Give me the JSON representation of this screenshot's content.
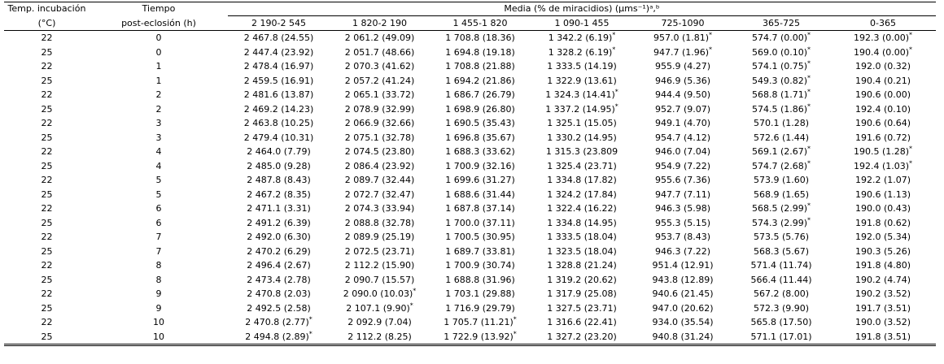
{
  "table": {
    "header": {
      "temp": [
        "Temp. incubación",
        "(°C)"
      ],
      "time": [
        "Tiempo",
        "post-eclosión (h)"
      ],
      "group": "Media (% de miracidios) (μms⁻¹)ᵃ,ᵇ",
      "columns": [
        "2 190-2 545",
        "1 820-2 190",
        "1 455-1 820",
        "1 090-1 455",
        "725-1090",
        "365-725",
        "0-365"
      ]
    },
    "rows": [
      [
        "22",
        "0",
        "2 467.8 (24.55)",
        "2 061.2 (49.09)",
        "1 708.8 (18.36)",
        "1 342.2 (6.19)*",
        "957.0 (1.81)*",
        "574.7 (0.00)*",
        "192.3 (0.00)*"
      ],
      [
        "25",
        "0",
        "2 447.4 (23.92)",
        "2 051.7 (48.66)",
        "1 694.8 (19.18)",
        "1 328.2 (6.19)*",
        "947.7 (1.96)*",
        "569.0 (0.10)*",
        "190.4 (0.00)*"
      ],
      [
        "22",
        "1",
        "2 478.4 (16.97)",
        "2 070.3 (41.62)",
        "1 708.8 (21.88)",
        "1 333.5 (14.19)",
        "955.9 (4.27)",
        "574.1 (0.75)*",
        "192.0 (0.32)"
      ],
      [
        "25",
        "1",
        "2 459.5 (16.91)",
        "2 057.2 (41.24)",
        "1 694.2 (21.86)",
        "1 322.9 (13.61)",
        "946.9 (5.36)",
        "549.3 (0.82)*",
        "190.4 (0.21)"
      ],
      [
        "22",
        "2",
        "2 481.6 (13.87)",
        "2 065.1 (33.72)",
        "1 686.7 (26.79)",
        "1 324.3 (14.41)*",
        "944.4 (9.50)",
        "568.8 (1.71)*",
        "190.6 (0.00)"
      ],
      [
        "25",
        "2",
        "2 469.2 (14.23)",
        "2 078.9 (32.99)",
        "1 698.9 (26.80)",
        "1 337.2 (14.95)*",
        "952.7 (9.07)",
        "574.5 (1.86)*",
        "192.4 (0.10)"
      ],
      [
        "22",
        "3",
        "2 463.8 (10.25)",
        "2 066.9 (32.66)",
        "1 690.5 (35.43)",
        "1 325.1 (15.05)",
        "949.1 (4.70)",
        "570.1 (1.28)",
        "190.6 (0.64)"
      ],
      [
        "25",
        "3",
        "2 479.4 (10.31)",
        "2 075.1 (32.78)",
        "1 696.8 (35.67)",
        "1 330.2 (14.95)",
        "954.7 (4.12)",
        "572.6 (1.44)",
        "191.6 (0.72)"
      ],
      [
        "22",
        "4",
        "2 464.0 (7.79)",
        "2 074.5 (23.80)",
        "1 688.3 (33.62)",
        "1 315.3 (23.809",
        "946.0 (7.04)",
        "569.1 (2.67)*",
        "190.5 (1.28)*"
      ],
      [
        "25",
        "4",
        "2 485.0 (9.28)",
        "2 086.4 (23.92)",
        "1 700.9 (32.16)",
        "1 325.4 (23.71)",
        "954.9 (7.22)",
        "574.7 (2.68)*",
        "192.4 (1.03)*"
      ],
      [
        "22",
        "5",
        "2 487.8 (8.43)",
        "2 089.7 (32.44)",
        "1 699.6 (31.27)",
        "1 334.8 (17.82)",
        "955.6 (7.36)",
        "573.9 (1.60)",
        "192.2 (1.07)"
      ],
      [
        "25",
        "5",
        "2 467.2 (8.35)",
        "2 072.7 (32.47)",
        "1 688.6 (31.44)",
        "1 324.2 (17.84)",
        "947.7 (7.11)",
        "568.9 (1.65)",
        "190.6 (1.13)"
      ],
      [
        "22",
        "6",
        "2 471.1 (3.31)",
        "2 074.3 (33.94)",
        "1 687.8 (37.14)",
        "1 322.4 (16.22)",
        "946.3 (5.98)",
        "568.5 (2.99)*",
        "190.0 (0.43)"
      ],
      [
        "25",
        "6",
        "2 491.2 (6.39)",
        "2 088.8 (32.78)",
        "1 700.0 (37.11)",
        "1 334.8 (14.95)",
        "955.3 (5.15)",
        "574.3 (2.99)*",
        "191.8 (0.62)"
      ],
      [
        "22",
        "7",
        "2 492.0 (6.30)",
        "2 089.9 (25.19)",
        "1 700.5 (30.95)",
        "1 333.5 (18.04)",
        "953.7 (8.43)",
        "573.5 (5.76)",
        "192.0 (5.34)"
      ],
      [
        "25",
        "7",
        "2 470.2 (6.29)",
        "2 072.5 (23.71)",
        "1 689.7 (33.81)",
        "1 323.5 (18.04)",
        "946.3 (7.22)",
        "568.3 (5.67)",
        "190.3 (5.26)"
      ],
      [
        "22",
        "8",
        "2 496.4 (2.67)",
        "2 112.2 (15.90)",
        "1 700.9 (30.74)",
        "1 328.8 (21.24)",
        "951.4 (12.91)",
        "571.4 (11.74)",
        "191.8 (4.80)"
      ],
      [
        "25",
        "8",
        "2 473.4 (2.78)",
        "2 090.7 (15.57)",
        "1 688.8 (31.96)",
        "1 319.2 (20.62)",
        "943.8 (12.89)",
        "566.4 (11.44)",
        "190.2 (4.74)"
      ],
      [
        "22",
        "9",
        "2 470.8 (2.03)",
        "2 090.0 (10.03)*",
        "1 703.1 (29.88)",
        "1 317.9 (25.08)",
        "940.6 (21.45)",
        "567.2 (8.00)",
        "190.2 (3.52)"
      ],
      [
        "25",
        "9",
        "2 492.5 (2.58)",
        "2 107.1 (9.90)*",
        "1 716.9 (29.79)",
        "1 327.5 (23.71)",
        "947.0 (20.62)",
        "572.3 (9.90)",
        "191.7 (3.51)"
      ],
      [
        "22",
        "10",
        "2 470.8 (2.77)*",
        "2 092.9 (7.04)",
        "1 705.7 (11.21)*",
        "1 316.6 (22.41)",
        "934.0 (35.54)",
        "565.8 (17.50)",
        "190.0 (3.52)"
      ],
      [
        "25",
        "10",
        "2 494.8 (2.89)*",
        "2 112.2 (8.25)",
        "1 722.9 (13.92)*",
        "1 327.2 (23.20)",
        "940.8 (31.24)",
        "571.1 (17.01)",
        "191.8 (3.51)"
      ]
    ]
  }
}
